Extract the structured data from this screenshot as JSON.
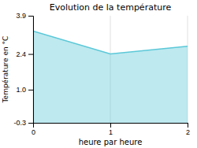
{
  "chart_data": {
    "type": "area",
    "title": "Evolution de la température",
    "xlabel": "heure par heure",
    "ylabel": "Température en °C",
    "x": [
      0,
      1,
      2
    ],
    "values": [
      3.3,
      2.4,
      2.7
    ],
    "color": "#5bc8d8",
    "xlim": [
      0,
      2
    ],
    "xticks": [
      0,
      1,
      2
    ],
    "ylim": [
      -0.3,
      3.9
    ],
    "yticks": [
      -0.3,
      {
        "value": 1.0,
        "label": "1.0"
      },
      2.4,
      3.9
    ],
    "grid": "x"
  }
}
